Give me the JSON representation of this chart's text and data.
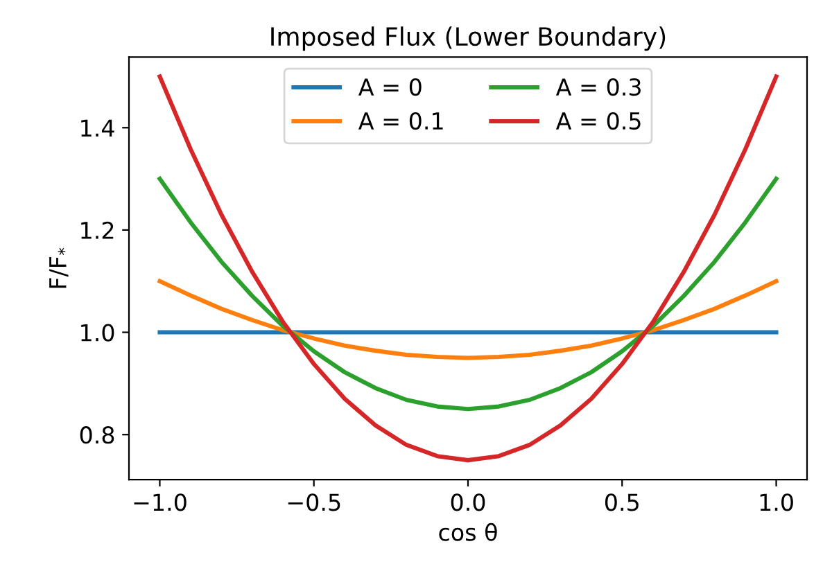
{
  "chart_data": {
    "type": "line",
    "title": "Imposed Flux (Lower Boundary)",
    "xlabel": "cos θ",
    "ylabel": "F/F$_{*}$",
    "x": [
      -1.0,
      -0.9,
      -0.8,
      -0.7,
      -0.6,
      -0.5,
      -0.4,
      -0.3,
      -0.2,
      -0.1,
      0.0,
      0.1,
      0.2,
      0.3,
      0.4,
      0.5,
      0.6,
      0.7,
      0.8,
      0.9,
      1.0
    ],
    "series": [
      {
        "name": "A = 0",
        "color": "#1f77b4",
        "values": [
          1,
          1,
          1,
          1,
          1,
          1,
          1,
          1,
          1,
          1,
          1,
          1,
          1,
          1,
          1,
          1,
          1,
          1,
          1,
          1,
          1
        ]
      },
      {
        "name": "A = 0.1",
        "color": "#ff7f0e",
        "values": [
          1.1,
          1.072,
          1.046,
          1.024,
          1.004,
          0.988,
          0.974,
          0.964,
          0.956,
          0.952,
          0.95,
          0.952,
          0.956,
          0.964,
          0.974,
          0.988,
          1.004,
          1.024,
          1.046,
          1.072,
          1.1
        ]
      },
      {
        "name": "A = 0.3",
        "color": "#2ca02c",
        "values": [
          1.3,
          1.215,
          1.138,
          1.071,
          1.012,
          0.963,
          0.922,
          0.891,
          0.868,
          0.855,
          0.85,
          0.855,
          0.868,
          0.891,
          0.922,
          0.963,
          1.012,
          1.071,
          1.138,
          1.215,
          1.3
        ]
      },
      {
        "name": "A = 0.5",
        "color": "#d62728",
        "values": [
          1.5,
          1.358,
          1.23,
          1.118,
          1.02,
          0.938,
          0.87,
          0.818,
          0.78,
          0.758,
          0.75,
          0.758,
          0.78,
          0.818,
          0.87,
          0.938,
          1.02,
          1.118,
          1.23,
          1.358,
          1.5
        ]
      }
    ],
    "xlim": [
      -1.1,
      1.1
    ],
    "ylim": [
      0.712,
      1.538
    ],
    "xticks": [
      {
        "value": -1.0,
        "label": "−1.0"
      },
      {
        "value": -0.5,
        "label": "−0.5"
      },
      {
        "value": 0.0,
        "label": "0.0"
      },
      {
        "value": 0.5,
        "label": "0.5"
      },
      {
        "value": 1.0,
        "label": "1.0"
      }
    ],
    "yticks": [
      {
        "value": 0.8,
        "label": "0.8"
      },
      {
        "value": 1.0,
        "label": "1.0"
      },
      {
        "value": 1.2,
        "label": "1.2"
      },
      {
        "value": 1.4,
        "label": "1.4"
      }
    ],
    "legend": "top",
    "grid": false,
    "line_style": "solid"
  }
}
